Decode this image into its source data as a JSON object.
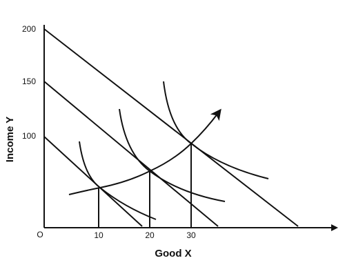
{
  "axes": {
    "y_label": "Income Y",
    "x_label": "Good X",
    "origin": "O"
  },
  "y_ticks": [
    "200",
    "150",
    "100"
  ],
  "x_ticks": [
    "10",
    "20",
    "30"
  ]
}
